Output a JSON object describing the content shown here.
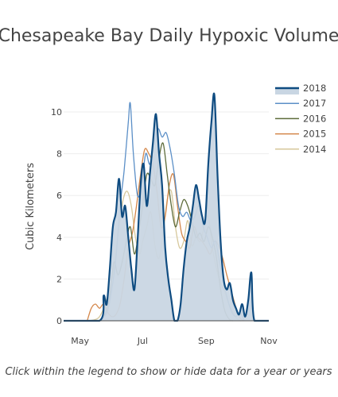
{
  "chart_data": {
    "type": "area",
    "title": "Chesapeake Bay Daily Hypoxic Volume",
    "xlabel": "",
    "ylabel": "Cubic Kilometers",
    "x_ticks": [
      "May",
      "Jul",
      "Sep",
      "Nov"
    ],
    "y_ticks": [
      0,
      2,
      4,
      6,
      8,
      10
    ],
    "xlim": [
      "Apr 15",
      "Nov 1"
    ],
    "ylim": [
      0,
      10.8
    ],
    "grid": true,
    "legend_position": "top-right",
    "caption": "Click within the legend to show or hide data for a year or years",
    "series": [
      {
        "name": "2014",
        "color": "#d6c79a",
        "fill": false,
        "points": [
          [
            "May 10",
            0
          ],
          [
            "May 20",
            0.2
          ],
          [
            "May 28",
            1.2
          ],
          [
            "Jun 3",
            2.5
          ],
          [
            "Jun 8",
            4.5
          ],
          [
            "Jun 12",
            5.8
          ],
          [
            "Jun 16",
            6.2
          ],
          [
            "Jun 20",
            5.5
          ],
          [
            "Jun 24",
            4.0
          ],
          [
            "Jun 28",
            3.2
          ],
          [
            "Jul 1",
            3.8
          ],
          [
            "Jul 5",
            4.5
          ],
          [
            "Jul 9",
            5.2
          ],
          [
            "Jul 13",
            3.6
          ],
          [
            "Jul 17",
            3.0
          ],
          [
            "Jul 21",
            4.2
          ],
          [
            "Jul 25",
            5.8
          ],
          [
            "Jul 29",
            6.2
          ],
          [
            "Aug 2",
            4.5
          ],
          [
            "Aug 6",
            3.5
          ],
          [
            "Aug 10",
            3.8
          ],
          [
            "Aug 14",
            4.8
          ],
          [
            "Aug 18",
            3.6
          ],
          [
            "Aug 22",
            4.0
          ],
          [
            "Aug 26",
            3.8
          ],
          [
            "Aug 30",
            4.5
          ],
          [
            "Sep 3",
            5.0
          ],
          [
            "Sep 7",
            3.5
          ],
          [
            "Sep 11",
            2.5
          ],
          [
            "Sep 15",
            1.8
          ],
          [
            "Sep 19",
            1.4
          ],
          [
            "Sep 23",
            0.8
          ],
          [
            "Sep 27",
            0.4
          ],
          [
            "Oct 1",
            0.1
          ],
          [
            "Oct 5",
            0
          ]
        ]
      },
      {
        "name": "2015",
        "color": "#d4874a",
        "fill": false,
        "points": [
          [
            "May 8",
            0
          ],
          [
            "May 12",
            0.6
          ],
          [
            "May 16",
            0.8
          ],
          [
            "May 20",
            0.6
          ],
          [
            "May 24",
            0.8
          ],
          [
            "May 28",
            0.4
          ],
          [
            "Jun 1",
            0.2
          ],
          [
            "Jun 5",
            0.3
          ],
          [
            "Jun 9",
            0.8
          ],
          [
            "Jun 13",
            2.0
          ],
          [
            "Jun 17",
            3.5
          ],
          [
            "Jun 21",
            4.2
          ],
          [
            "Jun 25",
            5.5
          ],
          [
            "Jun 29",
            7.0
          ],
          [
            "Jul 3",
            8.2
          ],
          [
            "Jul 7",
            8.0
          ],
          [
            "Jul 11",
            7.5
          ],
          [
            "Jul 15",
            6.2
          ],
          [
            "Jul 19",
            4.5
          ],
          [
            "Jul 23",
            5.0
          ],
          [
            "Jul 27",
            6.5
          ],
          [
            "Jul 31",
            7.0
          ],
          [
            "Aug 4",
            5.5
          ],
          [
            "Aug 8",
            4.2
          ],
          [
            "Aug 12",
            3.8
          ],
          [
            "Aug 16",
            3.5
          ],
          [
            "Aug 20",
            4.5
          ],
          [
            "Aug 24",
            4.0
          ],
          [
            "Aug 28",
            3.8
          ],
          [
            "Sep 1",
            3.5
          ],
          [
            "Sep 5",
            3.2
          ],
          [
            "Sep 9",
            3.8
          ],
          [
            "Sep 13",
            3.6
          ],
          [
            "Sep 17",
            3.0
          ],
          [
            "Sep 21",
            2.2
          ],
          [
            "Sep 25",
            1.5
          ],
          [
            "Sep 29",
            0.8
          ],
          [
            "Oct 3",
            0.2
          ],
          [
            "Oct 7",
            0
          ]
        ]
      },
      {
        "name": "2016",
        "color": "#5d6b3a",
        "fill": false,
        "points": [
          [
            "May 20",
            0
          ],
          [
            "May 26",
            0.4
          ],
          [
            "May 30",
            1.2
          ],
          [
            "Jun 3",
            2.8
          ],
          [
            "Jun 7",
            2.2
          ],
          [
            "Jun 11",
            2.8
          ],
          [
            "Jun 15",
            3.8
          ],
          [
            "Jun 19",
            4.5
          ],
          [
            "Jun 23",
            3.2
          ],
          [
            "Jun 27",
            4.2
          ],
          [
            "Jul 1",
            5.5
          ],
          [
            "Jul 5",
            7.0
          ],
          [
            "Jul 9",
            6.8
          ],
          [
            "Jul 13",
            6.5
          ],
          [
            "Jul 17",
            7.8
          ],
          [
            "Jul 21",
            8.5
          ],
          [
            "Jul 25",
            7.0
          ],
          [
            "Jul 29",
            5.5
          ],
          [
            "Aug 2",
            4.5
          ],
          [
            "Aug 6",
            5.2
          ],
          [
            "Aug 10",
            5.8
          ],
          [
            "Aug 14",
            5.5
          ],
          [
            "Aug 18",
            4.8
          ],
          [
            "Aug 22",
            4.0
          ],
          [
            "Aug 26",
            4.2
          ],
          [
            "Aug 30",
            3.8
          ],
          [
            "Sep 3",
            4.5
          ],
          [
            "Sep 7",
            4.0
          ],
          [
            "Sep 11",
            3.0
          ],
          [
            "Sep 15",
            1.5
          ],
          [
            "Sep 19",
            0.5
          ],
          [
            "Sep 23",
            0.1
          ],
          [
            "Sep 27",
            0
          ]
        ]
      },
      {
        "name": "2017",
        "color": "#5b8fc7",
        "fill": false,
        "points": [
          [
            "May 22",
            0
          ],
          [
            "May 28",
            0.5
          ],
          [
            "Jun 1",
            1.5
          ],
          [
            "Jun 5",
            3.0
          ],
          [
            "Jun 9",
            5.5
          ],
          [
            "Jun 13",
            7.2
          ],
          [
            "Jun 17",
            9.5
          ],
          [
            "Jun 19",
            10.4
          ],
          [
            "Jun 22",
            8.0
          ],
          [
            "Jun 26",
            6.0
          ],
          [
            "Jun 30",
            6.5
          ],
          [
            "Jul 4",
            8.0
          ],
          [
            "Jul 8",
            7.5
          ],
          [
            "Jul 12",
            8.5
          ],
          [
            "Jul 16",
            9.2
          ],
          [
            "Jul 20",
            8.8
          ],
          [
            "Jul 24",
            9.0
          ],
          [
            "Jul 28",
            8.2
          ],
          [
            "Aug 1",
            7.0
          ],
          [
            "Aug 5",
            5.5
          ],
          [
            "Aug 9",
            5.0
          ],
          [
            "Aug 13",
            5.2
          ],
          [
            "Aug 17",
            4.8
          ],
          [
            "Aug 21",
            5.0
          ],
          [
            "Aug 25",
            5.5
          ],
          [
            "Aug 29",
            4.5
          ],
          [
            "Sep 2",
            4.0
          ],
          [
            "Sep 6",
            3.5
          ],
          [
            "Sep 10",
            3.8
          ],
          [
            "Sep 14",
            2.8
          ],
          [
            "Sep 18",
            1.8
          ],
          [
            "Sep 22",
            1.0
          ],
          [
            "Sep 26",
            0.4
          ],
          [
            "Sep 30",
            0.2
          ],
          [
            "Oct 4",
            0.4
          ],
          [
            "Oct 8",
            0
          ]
        ]
      },
      {
        "name": "2018",
        "color": "#0f4c81",
        "fill": true,
        "fill_color": "#c9d6e3",
        "points": [
          [
            "Apr 15",
            0
          ],
          [
            "May 20",
            0
          ],
          [
            "May 24",
            1.2
          ],
          [
            "May 27",
            0.8
          ],
          [
            "May 30",
            2.5
          ],
          [
            "Jun 2",
            4.5
          ],
          [
            "Jun 5",
            5.2
          ],
          [
            "Jun 8",
            6.8
          ],
          [
            "Jun 11",
            5.0
          ],
          [
            "Jun 14",
            5.5
          ],
          [
            "Jun 17",
            4.0
          ],
          [
            "Jun 20",
            2.5
          ],
          [
            "Jun 23",
            1.5
          ],
          [
            "Jun 26",
            3.8
          ],
          [
            "Jun 29",
            6.5
          ],
          [
            "Jul 2",
            7.5
          ],
          [
            "Jul 5",
            5.5
          ],
          [
            "Jul 8",
            7.0
          ],
          [
            "Jul 11",
            8.5
          ],
          [
            "Jul 14",
            9.9
          ],
          [
            "Jul 17",
            8.0
          ],
          [
            "Jul 20",
            6.5
          ],
          [
            "Jul 23",
            3.5
          ],
          [
            "Jul 26",
            2.0
          ],
          [
            "Jul 29",
            1.0
          ],
          [
            "Aug 1",
            0
          ],
          [
            "Aug 4",
            0
          ],
          [
            "Aug 7",
            0.8
          ],
          [
            "Aug 10",
            2.5
          ],
          [
            "Aug 13",
            3.8
          ],
          [
            "Aug 16",
            4.5
          ],
          [
            "Aug 19",
            5.5
          ],
          [
            "Aug 22",
            6.5
          ],
          [
            "Aug 25",
            5.8
          ],
          [
            "Aug 28",
            5.0
          ],
          [
            "Aug 31",
            4.8
          ],
          [
            "Sep 3",
            7.5
          ],
          [
            "Sep 6",
            9.5
          ],
          [
            "Sep 9",
            10.8
          ],
          [
            "Sep 12",
            7.0
          ],
          [
            "Sep 15",
            3.8
          ],
          [
            "Sep 18",
            2.0
          ],
          [
            "Sep 21",
            1.5
          ],
          [
            "Sep 24",
            1.8
          ],
          [
            "Sep 27",
            1.0
          ],
          [
            "Sep 30",
            0.6
          ],
          [
            "Oct 3",
            0.3
          ],
          [
            "Oct 6",
            0.8
          ],
          [
            "Oct 9",
            0.2
          ],
          [
            "Oct 12",
            1.0
          ],
          [
            "Oct 15",
            2.3
          ],
          [
            "Oct 18",
            0
          ],
          [
            "Nov 1",
            0
          ]
        ]
      }
    ]
  }
}
